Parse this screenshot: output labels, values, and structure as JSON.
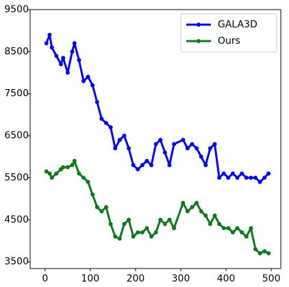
{
  "chart_data": {
    "type": "line",
    "x": [
      3,
      10,
      15,
      25,
      35,
      40,
      50,
      60,
      65,
      75,
      85,
      95,
      105,
      115,
      125,
      135,
      145,
      155,
      165,
      175,
      185,
      195,
      205,
      215,
      225,
      235,
      245,
      255,
      265,
      275,
      285,
      305,
      315,
      325,
      335,
      345,
      355,
      365,
      375,
      385,
      395,
      405,
      415,
      425,
      435,
      445,
      455,
      465,
      475,
      485,
      494
    ],
    "series": [
      {
        "name": "GALA3D",
        "color": "#0000ff",
        "values": [
          8700,
          8900,
          8600,
          8400,
          8200,
          8350,
          8000,
          8500,
          8700,
          8300,
          7800,
          7900,
          7700,
          7300,
          6900,
          6800,
          6700,
          6200,
          6400,
          6500,
          6200,
          5800,
          5700,
          5800,
          5900,
          5800,
          6300,
          6400,
          6100,
          5800,
          6300,
          6400,
          6200,
          6300,
          6200,
          6000,
          5800,
          6200,
          6300,
          5500,
          5600,
          5500,
          5600,
          5500,
          5600,
          5500,
          5500,
          5500,
          5400,
          5500,
          5600
        ]
      },
      {
        "name": "Ours",
        "color": "#0a7a16",
        "values": [
          5650,
          5600,
          5500,
          5600,
          5700,
          5750,
          5750,
          5800,
          5900,
          5600,
          5500,
          5400,
          5100,
          4800,
          4700,
          4800,
          4400,
          4100,
          4050,
          4400,
          4500,
          4100,
          4200,
          4200,
          4300,
          4100,
          4200,
          4500,
          4400,
          4500,
          4300,
          4900,
          4700,
          4800,
          4900,
          4700,
          4600,
          4400,
          4600,
          4400,
          4300,
          4300,
          4200,
          4300,
          4200,
          4100,
          4300,
          3800,
          3700,
          3750,
          3700
        ]
      }
    ],
    "xlim": [
      -33,
      521
    ],
    "xticks": [
      0,
      100,
      200,
      300,
      400,
      500
    ],
    "ylim": [
      3340,
      9500
    ],
    "yticks": [
      3500,
      4500,
      5500,
      6500,
      7500,
      8500,
      9500
    ],
    "legend": "upper right"
  }
}
